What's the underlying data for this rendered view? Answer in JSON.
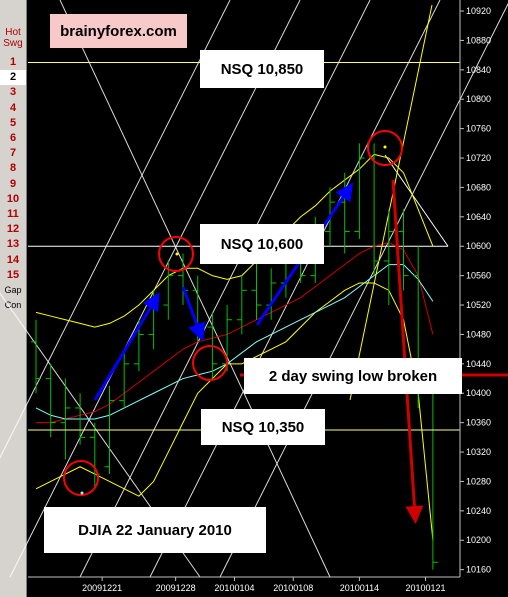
{
  "sidebar": {
    "header": [
      "Hot",
      "Swg"
    ],
    "items": [
      "1",
      "2",
      "3",
      "4",
      "5",
      "6",
      "7",
      "8",
      "9",
      "10",
      "11",
      "12",
      "13",
      "14",
      "15"
    ],
    "selected": "2",
    "extra": [
      "Gap",
      "Con"
    ]
  },
  "brand": "brainyforex.com",
  "annotations": {
    "nsq_10850": "NSQ 10,850",
    "nsq_10600": "NSQ 10,600",
    "nsq_10350": "NSQ 10,350",
    "swing_low": "2 day swing low broken",
    "djia": "DJIA 22 January 2010"
  },
  "colors": {
    "background": "#000000",
    "up_bar": "#00c000",
    "down_bar": "#00c000",
    "level_line": "#ffff80",
    "gann_lines": "#ffffff",
    "band_upper": "#ffff00",
    "band_lower": "#ffff00",
    "ma_red": "#d00000",
    "ma_cyan": "#80ffff",
    "arrow_blue": "#0000ff",
    "arrow_red": "#d00000",
    "circle": "#ff0000"
  },
  "chart_data": {
    "type": "bar",
    "subtype": "ohlc",
    "ylim": [
      10150,
      10935
    ],
    "y_ticks": [
      10920,
      10880,
      10840,
      10800,
      10760,
      10720,
      10680,
      10640,
      10600,
      10560,
      10520,
      10480,
      10440,
      10400,
      10360,
      10320,
      10280,
      10240,
      10200,
      10160
    ],
    "x_ticks": [
      "20091221",
      "20091228",
      "20100104",
      "20100108",
      "20100114",
      "20100121"
    ],
    "x_tick_index": [
      4.5,
      9.5,
      13.5,
      17.5,
      22,
      26.5
    ],
    "bars": [
      {
        "o": 10470,
        "h": 10500,
        "l": 10400,
        "c": 10420
      },
      {
        "o": 10420,
        "h": 10440,
        "l": 10340,
        "c": 10360
      },
      {
        "o": 10360,
        "h": 10420,
        "l": 10310,
        "c": 10380
      },
      {
        "o": 10380,
        "h": 10400,
        "l": 10330,
        "c": 10340
      },
      {
        "o": 10340,
        "h": 10360,
        "l": 10270,
        "c": 10290
      },
      {
        "o": 10300,
        "h": 10410,
        "l": 10290,
        "c": 10390
      },
      {
        "o": 10390,
        "h": 10460,
        "l": 10380,
        "c": 10440
      },
      {
        "o": 10440,
        "h": 10500,
        "l": 10430,
        "c": 10480
      },
      {
        "o": 10480,
        "h": 10540,
        "l": 10460,
        "c": 10520
      },
      {
        "o": 10520,
        "h": 10580,
        "l": 10500,
        "c": 10560
      },
      {
        "o": 10560,
        "h": 10590,
        "l": 10520,
        "c": 10540
      },
      {
        "o": 10540,
        "h": 10560,
        "l": 10470,
        "c": 10490
      },
      {
        "o": 10490,
        "h": 10510,
        "l": 10420,
        "c": 10440
      },
      {
        "o": 10440,
        "h": 10520,
        "l": 10430,
        "c": 10500
      },
      {
        "o": 10500,
        "h": 10560,
        "l": 10480,
        "c": 10540
      },
      {
        "o": 10540,
        "h": 10580,
        "l": 10500,
        "c": 10520
      },
      {
        "o": 10520,
        "h": 10570,
        "l": 10500,
        "c": 10550
      },
      {
        "o": 10550,
        "h": 10600,
        "l": 10530,
        "c": 10580
      },
      {
        "o": 10580,
        "h": 10620,
        "l": 10550,
        "c": 10560
      },
      {
        "o": 10560,
        "h": 10640,
        "l": 10550,
        "c": 10620
      },
      {
        "o": 10620,
        "h": 10680,
        "l": 10600,
        "c": 10660
      },
      {
        "o": 10660,
        "h": 10700,
        "l": 10590,
        "c": 10620
      },
      {
        "o": 10620,
        "h": 10740,
        "l": 10610,
        "c": 10720
      },
      {
        "o": 10720,
        "h": 10740,
        "l": 10560,
        "c": 10580
      },
      {
        "o": 10580,
        "h": 10650,
        "l": 10520,
        "c": 10620
      },
      {
        "o": 10620,
        "h": 10650,
        "l": 10540,
        "c": 10560
      },
      {
        "o": 10560,
        "h": 10600,
        "l": 10380,
        "c": 10400
      },
      {
        "o": 10400,
        "h": 10420,
        "l": 10160,
        "c": 10170
      }
    ],
    "level_lines": [
      10850,
      10350
    ],
    "white_level": 10600,
    "red_line": 10420,
    "ma_red": [
      10360,
      10360,
      10365,
      10370,
      10375,
      10385,
      10400,
      10415,
      10430,
      10445,
      10460,
      10470,
      10475,
      10480,
      10490,
      10500,
      10510,
      10520,
      10530,
      10545,
      10560,
      10575,
      10590,
      10600,
      10605,
      10595,
      10560,
      10480
    ],
    "ma_cyan": [
      10380,
      10370,
      10365,
      10365,
      10365,
      10370,
      10380,
      10390,
      10400,
      10410,
      10420,
      10425,
      10430,
      10440,
      10455,
      10470,
      10480,
      10490,
      10500,
      10510,
      10520,
      10530,
      10545,
      10560,
      10575,
      10575,
      10555,
      10525
    ],
    "band_upper": [
      10510,
      10505,
      10500,
      10495,
      10490,
      10495,
      10505,
      10520,
      10540,
      10560,
      10570,
      10570,
      10560,
      10555,
      10560,
      10580,
      10600,
      10620,
      10640,
      10655,
      10675,
      10690,
      10705,
      10725,
      10720,
      10700,
      10650,
      10600
    ],
    "band_lower": [
      10270,
      10280,
      10290,
      10300,
      10290,
      10280,
      10270,
      10260,
      10280,
      10320,
      10360,
      10400,
      10420,
      10440,
      10440,
      10450,
      10460,
      10470,
      10490,
      10510,
      10525,
      10540,
      10550,
      10550,
      10540,
      10500,
      10400,
      10200
    ]
  }
}
